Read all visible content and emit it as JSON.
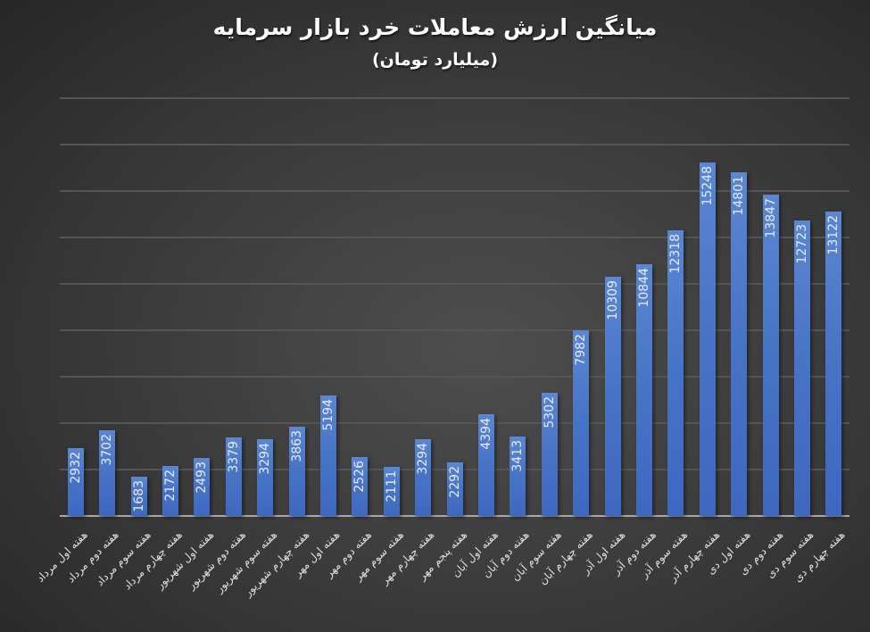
{
  "chart_data": {
    "type": "bar",
    "title": "میانگین ارزش معاملات خرد بازار سرمایه",
    "subtitle": "(میلیارد تومان)",
    "xlabel": "",
    "ylabel": "",
    "ylim": [
      0,
      18000
    ],
    "grid": true,
    "grid_step": 2000,
    "y_tick_labels_visible": false,
    "legend": "none",
    "data_labels": "inside-end, rotated 90°",
    "categories": [
      "هفته اول مرداد",
      "هفته دوم مرداد",
      "هفته سوم مرداد",
      "هفته چهارم مرداد",
      "هفته اول شهریور",
      "هفته دوم شهریور",
      "هفته سوم شهریور",
      "هفته چهارم شهریور",
      "هفته اول مهر",
      "هفته دوم مهر",
      "هفته سوم مهر",
      "هفته چهارم مهر",
      "هفته پنجم مهر",
      "هفته اول آبان",
      "هفته دوم آبان",
      "هفته سوم آبان",
      "هفته چهارم آبان",
      "هفته اول آذر",
      "هفته دوم آذر",
      "هفته سوم آذر",
      "هفته چهارم آذر",
      "هفته اول دی",
      "هفته دوم دی",
      "هفته سوم دی",
      "هفته چهارم دی"
    ],
    "values": [
      2932,
      3702,
      1683,
      2172,
      2493,
      3379,
      3294,
      3863,
      5194,
      2526,
      2111,
      3294,
      2292,
      4394,
      3413,
      5302,
      7982,
      10309,
      10844,
      12318,
      15248,
      14801,
      13847,
      12723,
      13122
    ],
    "colors": {
      "bar": "#4472C4",
      "background": "#3a3a3a",
      "gridline": "#555555",
      "text": "#ffffff"
    }
  }
}
